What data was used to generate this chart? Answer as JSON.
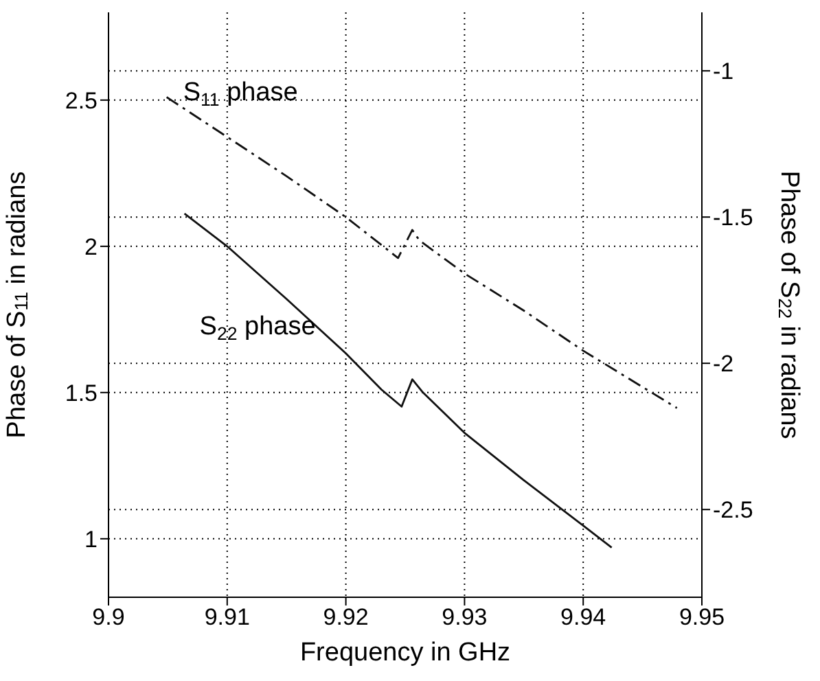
{
  "chart_data": {
    "type": "line",
    "xlabel": "Frequency in GHz",
    "ylabel": "Phase of S$_{11}$ in radians",
    "y2label": "Phase of S$_{22}$ in radians",
    "xlim": [
      9.9,
      9.95
    ],
    "xticks": [
      9.9,
      9.91,
      9.92,
      9.93,
      9.94,
      9.95
    ],
    "ylim": [
      0.8,
      2.8
    ],
    "yticks": [
      1,
      1.5,
      2,
      2.5
    ],
    "y2lim": [
      -2.8,
      -0.8
    ],
    "y2ticks": [
      -2.5,
      -2,
      -1.5,
      -1
    ],
    "grid": true,
    "series": [
      {
        "name": "S$_{11}$ phase",
        "color": "#111111",
        "line_style": "dashed",
        "x": [
          9.9049,
          9.91,
          9.915,
          9.92,
          9.9244,
          9.9256,
          9.9262,
          9.93,
          9.935,
          9.94,
          9.9479
        ],
        "values": [
          2.51,
          2.374,
          2.24,
          2.1,
          1.96,
          2.056,
          2.02,
          1.907,
          1.78,
          1.643,
          1.447
        ]
      },
      {
        "name": "S$_{22}$ phase",
        "color": "#111111",
        "line_style": "solid",
        "axis": "y2",
        "x": [
          9.9064,
          9.91,
          9.915,
          9.92,
          9.923,
          9.9247,
          9.9256,
          9.9265,
          9.93,
          9.935,
          9.94,
          9.9424
        ],
        "values": [
          -1.488,
          -1.6,
          -1.78,
          -1.966,
          -2.09,
          -2.148,
          -2.055,
          -2.1,
          -2.238,
          -2.4,
          -2.555,
          -2.63
        ]
      }
    ]
  }
}
